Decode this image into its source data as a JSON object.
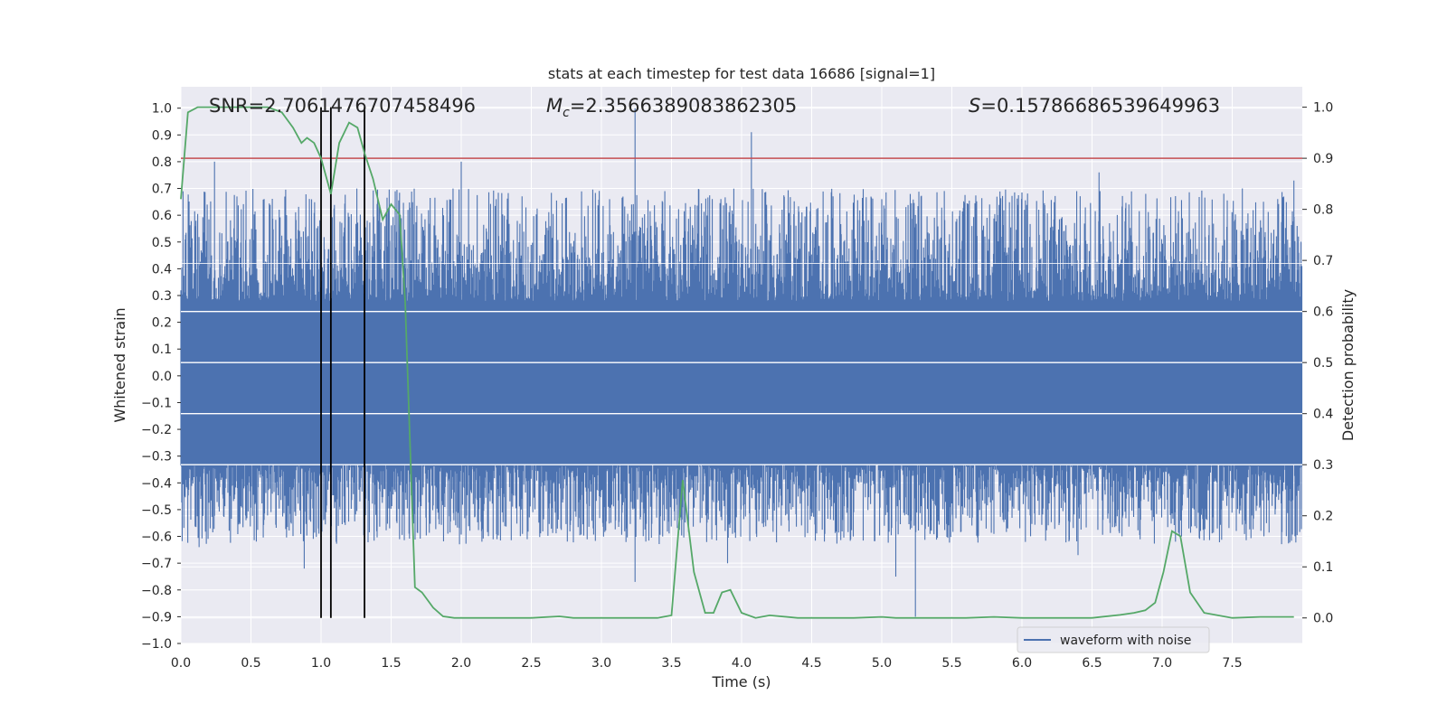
{
  "chart_data": {
    "type": "line",
    "title": "stats at each timestep for test data 16686 [signal=1]",
    "xlabel": "Time (s)",
    "ylabel": "Whitened strain",
    "y2label": "Detection probability",
    "xlim": [
      0.0,
      8.0
    ],
    "ylim": [
      -1.0,
      1.08
    ],
    "y2lim": [
      -0.05,
      1.04
    ],
    "x_ticks": [
      "0.0",
      "0.5",
      "1.0",
      "1.5",
      "2.0",
      "2.5",
      "3.0",
      "3.5",
      "4.0",
      "4.5",
      "5.0",
      "5.5",
      "6.0",
      "6.5",
      "7.0",
      "7.5"
    ],
    "y_ticks": [
      "1.0",
      "0.9",
      "0.8",
      "0.7",
      "0.6",
      "0.5",
      "0.4",
      "0.3",
      "0.2",
      "0.1",
      "0.0",
      "-0.1",
      "-0.2",
      "-0.3",
      "-0.4",
      "-0.5",
      "-0.6",
      "-0.7",
      "-0.8",
      "-0.9",
      "-1.0"
    ],
    "y2_ticks": [
      "1.0",
      "0.9",
      "0.8",
      "0.7",
      "0.6",
      "0.5",
      "0.4",
      "0.3",
      "0.2",
      "0.1",
      "0.0"
    ],
    "grid": true,
    "legend_position": "lower-right",
    "annotations": {
      "snr": "SNR=2.7061476707458496",
      "mc_symbol": "M",
      "mc_sub": "c",
      "mc_value": "=2.3566389083862305",
      "s_symbol": "S",
      "s_value": "=0.15786686539649963"
    },
    "threshold_y2": 0.9,
    "vertical_lines_x": [
      1.0,
      1.07,
      1.31
    ],
    "vertical_lines_range_y2": [
      0.0,
      1.0
    ],
    "waveform": {
      "name": "waveform with noise",
      "color": "#4c72b0",
      "x_range": [
        0.0,
        8.0
      ],
      "envelope_ref": 0.42,
      "band_top": 0.27,
      "band_bottom": -0.33,
      "peaks": [
        {
          "x": 0.24,
          "y": 0.8
        },
        {
          "x": 2.0,
          "y": 0.8
        },
        {
          "x": 3.24,
          "y": 1.0
        },
        {
          "x": 4.07,
          "y": 0.91
        },
        {
          "x": 1.62,
          "y": 0.62
        },
        {
          "x": 7.94,
          "y": 0.73
        },
        {
          "x": 6.55,
          "y": 0.76
        },
        {
          "x": 3.24,
          "y": -0.77
        },
        {
          "x": 5.24,
          "y": -0.9
        },
        {
          "x": 5.1,
          "y": -0.75
        },
        {
          "x": 0.88,
          "y": -0.72
        },
        {
          "x": 3.9,
          "y": -0.7
        },
        {
          "x": 6.4,
          "y": -0.67
        },
        {
          "x": 0.13,
          "y": -0.64
        }
      ]
    },
    "probability": {
      "color": "#55a868",
      "x": [
        0.0,
        0.05,
        0.12,
        0.25,
        0.5,
        0.62,
        0.72,
        0.8,
        0.86,
        0.9,
        0.95,
        1.0,
        1.07,
        1.13,
        1.2,
        1.26,
        1.31,
        1.37,
        1.44,
        1.5,
        1.56,
        1.6,
        1.67,
        1.72,
        1.8,
        1.87,
        1.95,
        2.2,
        2.5,
        2.7,
        2.8,
        3.0,
        3.2,
        3.4,
        3.5,
        3.58,
        3.66,
        3.74,
        3.8,
        3.86,
        3.92,
        4.0,
        4.1,
        4.2,
        4.4,
        4.6,
        4.8,
        5.0,
        5.1,
        5.3,
        5.6,
        5.8,
        6.0,
        6.2,
        6.5,
        6.7,
        6.8,
        6.88,
        6.95,
        7.01,
        7.07,
        7.13,
        7.2,
        7.3,
        7.5,
        7.7,
        7.94
      ],
      "y": [
        0.82,
        0.99,
        1.0,
        1.0,
        1.0,
        1.0,
        0.99,
        0.96,
        0.93,
        0.94,
        0.93,
        0.9,
        0.83,
        0.93,
        0.97,
        0.96,
        0.91,
        0.86,
        0.78,
        0.81,
        0.79,
        0.62,
        0.06,
        0.05,
        0.02,
        0.003,
        0.0,
        0.0,
        0.0,
        0.003,
        0.0,
        0.0,
        0.0,
        0.0,
        0.005,
        0.27,
        0.09,
        0.01,
        0.01,
        0.05,
        0.055,
        0.01,
        0.0,
        0.005,
        0.0,
        0.0,
        0.0,
        0.002,
        0.0,
        0.0,
        0.0,
        0.002,
        0.0,
        0.0,
        0.0,
        0.006,
        0.01,
        0.015,
        0.03,
        0.09,
        0.17,
        0.16,
        0.05,
        0.01,
        0.0,
        0.002,
        0.002
      ]
    }
  }
}
